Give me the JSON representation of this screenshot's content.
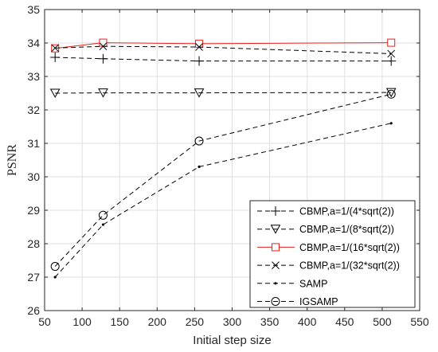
{
  "chart_data": {
    "type": "line",
    "title": "",
    "xlabel": "Initial step size",
    "ylabel": "PSNR",
    "xlim": [
      50,
      550
    ],
    "ylim": [
      26,
      35
    ],
    "xticks": [
      50,
      100,
      150,
      200,
      250,
      300,
      350,
      400,
      450,
      500,
      550
    ],
    "yticks": [
      26,
      27,
      28,
      29,
      30,
      31,
      32,
      33,
      34,
      35
    ],
    "grid": true,
    "legend_position": "bottom-right",
    "x": [
      64,
      128,
      256,
      512
    ],
    "series": [
      {
        "name": "CBMP,a=1/(4*sqrt(2))",
        "values": [
          33.57,
          33.53,
          33.46,
          33.46
        ],
        "color": "#000000",
        "dash": "dashed",
        "marker": "plus"
      },
      {
        "name": "CBMP,a=1/(8*sqrt(2))",
        "values": [
          32.5,
          32.51,
          32.51,
          32.52
        ],
        "color": "#000000",
        "dash": "dashed",
        "marker": "triangle-down"
      },
      {
        "name": "CBMP,a=1/(16*sqrt(2))",
        "values": [
          33.84,
          34.01,
          33.98,
          34.01
        ],
        "color": "#e8211d",
        "dash": "solid",
        "marker": "square"
      },
      {
        "name": "CBMP,a=1/(32*sqrt(2))",
        "values": [
          33.85,
          33.9,
          33.88,
          33.68
        ],
        "color": "#000000",
        "dash": "dashed",
        "marker": "x"
      },
      {
        "name": "SAMP",
        "values": [
          27.0,
          28.57,
          30.3,
          31.6
        ],
        "color": "#000000",
        "dash": "dashed",
        "marker": "dot"
      },
      {
        "name": "IGSAMP",
        "values": [
          27.32,
          28.85,
          31.07,
          32.47
        ],
        "color": "#000000",
        "dash": "dashed",
        "marker": "circle"
      }
    ]
  }
}
